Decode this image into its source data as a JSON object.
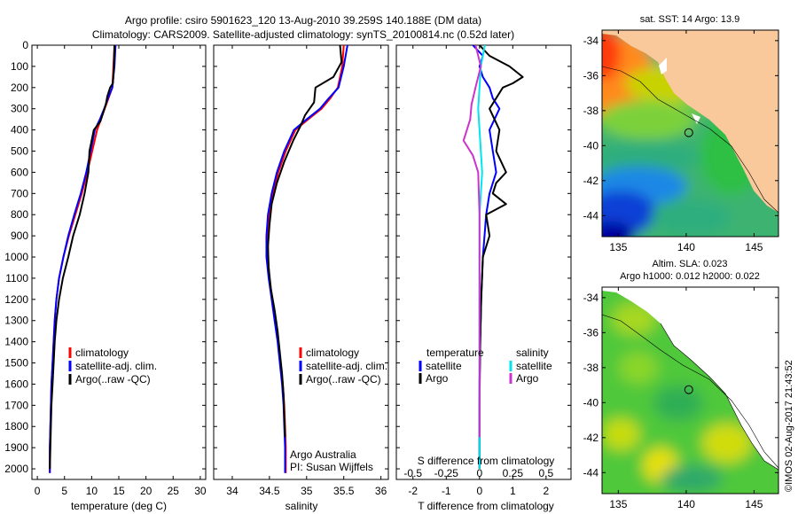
{
  "header": {
    "title_line1": "Argo profile: csiro 5901623_120 13-Aug-2010 39.259S 140.188E (DM data)",
    "title_line2": "Climatology: CARS2009. Satellite-adjusted climatology: synTS_20100814.nc (0.52d later)"
  },
  "colors": {
    "climatology": "#ff0000",
    "satellite": "#0000ff",
    "argo": "#000000",
    "salinity_satellite": "#00e5ee",
    "salinity_argo": "#cc33cc",
    "land": "#f9c89b"
  },
  "chart_data": [
    {
      "id": "temperature",
      "type": "line",
      "xlabel": "temperature (deg C)",
      "xlim": [
        -1,
        31
      ],
      "xticks": [
        0,
        5,
        10,
        15,
        20,
        25,
        30
      ],
      "ylim": [
        0,
        2050
      ],
      "yticks": [
        0,
        100,
        200,
        300,
        400,
        500,
        600,
        700,
        800,
        900,
        1000,
        1100,
        1200,
        1300,
        1400,
        1500,
        1600,
        1700,
        1800,
        1900,
        2000
      ],
      "legend": [
        "climatology",
        "satellite-adj. clim.",
        "Argo(..raw -QC)"
      ],
      "series": [
        {
          "name": "climatology",
          "color": "#ff0000",
          "x": [
            14.2,
            14.0,
            13.8,
            13.1,
            12.4,
            11.7,
            11.0,
            10.1,
            9.2,
            8.2,
            7.0,
            5.8,
            4.8,
            4.0,
            3.5,
            3.2,
            3.0,
            2.8,
            2.6,
            2.5,
            2.4,
            2.3,
            2.3
          ],
          "y": [
            0,
            100,
            200,
            250,
            300,
            350,
            400,
            500,
            600,
            700,
            800,
            900,
            1000,
            1100,
            1200,
            1300,
            1400,
            1500,
            1600,
            1700,
            1800,
            1900,
            2020
          ]
        },
        {
          "name": "satellite-adj. clim.",
          "color": "#0000ff",
          "x": [
            14.4,
            14.2,
            13.8,
            13.0,
            12.3,
            11.5,
            10.6,
            9.8,
            9.0,
            8.0,
            6.8,
            5.7,
            4.8,
            4.0,
            3.5,
            3.2,
            3.0,
            2.8,
            2.6,
            2.5,
            2.4,
            2.3,
            2.3
          ],
          "y": [
            0,
            100,
            200,
            250,
            300,
            350,
            400,
            500,
            600,
            700,
            800,
            900,
            1000,
            1100,
            1200,
            1300,
            1400,
            1500,
            1600,
            1700,
            1800,
            1900,
            2020
          ]
        },
        {
          "name": "Argo(..raw -QC)",
          "color": "#000000",
          "x": [
            14.2,
            14.1,
            13.9,
            13.4,
            12.9,
            12.6,
            11.6,
            10.4,
            9.6,
            9.4,
            8.7,
            7.8,
            6.6,
            5.7,
            4.7,
            4.0,
            3.5,
            3.2,
            3.0,
            2.8,
            2.6,
            2.5,
            2.4,
            2.3
          ],
          "y": [
            0,
            100,
            180,
            200,
            240,
            280,
            360,
            400,
            500,
            600,
            700,
            800,
            900,
            1000,
            1100,
            1200,
            1300,
            1400,
            1500,
            1600,
            1700,
            1800,
            1900,
            2000
          ]
        }
      ]
    },
    {
      "id": "salinity",
      "type": "line",
      "xlabel": "salinity",
      "xlim": [
        33.75,
        36.1
      ],
      "xticks": [
        34,
        34.5,
        35,
        35.5,
        36
      ],
      "ylim": [
        0,
        2050
      ],
      "legend": [
        "climatology",
        "satellite-adj. clim.",
        "Argo(..raw -QC)"
      ],
      "annotation": [
        "Argo Australia",
        "PI: Susan Wijffels"
      ],
      "series": [
        {
          "name": "climatology",
          "color": "#ff0000",
          "x": [
            35.5,
            35.48,
            35.42,
            35.32,
            35.2,
            35.02,
            34.85,
            34.72,
            34.62,
            34.55,
            34.5,
            34.48,
            34.48,
            34.5,
            34.54,
            34.58,
            34.62,
            34.65,
            34.68,
            34.7,
            34.71,
            34.72,
            34.72
          ],
          "y": [
            0,
            100,
            200,
            250,
            300,
            350,
            400,
            500,
            600,
            700,
            800,
            900,
            1000,
            1100,
            1200,
            1300,
            1400,
            1500,
            1600,
            1700,
            1800,
            1900,
            2020
          ]
        },
        {
          "name": "satellite-adj. clim.",
          "color": "#0000ff",
          "x": [
            35.55,
            35.5,
            35.43,
            35.3,
            35.18,
            35.0,
            34.83,
            34.7,
            34.6,
            34.53,
            34.48,
            34.46,
            34.46,
            34.49,
            34.53,
            34.57,
            34.61,
            34.64,
            34.67,
            34.69,
            34.7,
            34.71,
            34.71
          ],
          "y": [
            0,
            100,
            200,
            250,
            300,
            350,
            400,
            500,
            600,
            700,
            800,
            900,
            1000,
            1100,
            1200,
            1300,
            1400,
            1500,
            1600,
            1700,
            1800,
            1900,
            2020
          ]
        },
        {
          "name": "Argo(..raw -QC)",
          "color": "#000000",
          "x": [
            35.45,
            35.47,
            35.36,
            35.12,
            35.1,
            34.98,
            34.92,
            34.82,
            34.7,
            34.6,
            34.53,
            34.5,
            34.48,
            34.49,
            34.52,
            34.57,
            34.61,
            34.64,
            34.67,
            34.69,
            34.7,
            34.71
          ],
          "y": [
            0,
            80,
            150,
            200,
            270,
            330,
            380,
            450,
            550,
            650,
            750,
            850,
            950,
            1050,
            1150,
            1250,
            1350,
            1450,
            1550,
            1650,
            1750,
            1850
          ]
        }
      ]
    },
    {
      "id": "difference",
      "type": "line",
      "xlabel": "T difference from climatology",
      "xlabel_top": "S difference from climatology",
      "xlim": [
        -2.5,
        2.75
      ],
      "xticks": [
        -2,
        -1,
        0,
        1,
        2
      ],
      "xticks_top": [
        -0.5,
        -0.25,
        0,
        0.25,
        0.5
      ],
      "ylim": [
        0,
        2050
      ],
      "legend_headers": [
        "temperature",
        "salinity"
      ],
      "legend": [
        "satellite",
        "Argo",
        "satellite",
        "Argo"
      ],
      "series": [
        {
          "name": "temperature satellite",
          "color": "#0000ff",
          "x": [
            -0.2,
            0.1,
            0.0,
            0.1,
            0.3,
            0.4,
            0.6,
            0.3,
            0.4,
            0.5,
            0.3,
            0.2,
            0.1,
            0.05,
            0.02,
            0.01,
            0.0,
            0.0,
            0.0,
            0.0,
            0.0
          ],
          "y": [
            0,
            50,
            100,
            150,
            200,
            250,
            300,
            400,
            500,
            600,
            700,
            800,
            1000,
            1200,
            1400,
            1500,
            1600,
            1700,
            1800,
            1900,
            2000
          ]
        },
        {
          "name": "temperature Argo",
          "color": "#000000",
          "x": [
            0.0,
            0.3,
            0.9,
            1.3,
            1.0,
            0.7,
            0.5,
            0.3,
            0.6,
            0.5,
            0.8,
            0.5,
            0.4,
            0.8,
            0.2,
            0.3,
            0.1,
            0.05,
            0.02,
            0.0,
            0.0
          ],
          "y": [
            0,
            50,
            100,
            150,
            180,
            200,
            250,
            300,
            400,
            500,
            600,
            650,
            700,
            750,
            800,
            900,
            1000,
            1200,
            1400,
            1700,
            2000
          ]
        },
        {
          "name": "salinity satellite",
          "color": "#00e5ee",
          "x": [
            0.04,
            0.01,
            0.0,
            -0.01,
            0.0,
            0.01,
            0.02,
            0.01,
            0.0,
            0.0,
            0.0,
            0.0,
            0.0
          ],
          "y": [
            0,
            100,
            200,
            300,
            400,
            500,
            600,
            700,
            800,
            1000,
            1400,
            1800,
            2000
          ]
        },
        {
          "name": "salinity Argo",
          "color": "#cc33cc",
          "x": [
            -0.03,
            0.01,
            -0.03,
            -0.06,
            -0.07,
            -0.12,
            -0.05,
            -0.01,
            0.0,
            0.0,
            0.0,
            0.0
          ],
          "y": [
            0,
            100,
            200,
            280,
            350,
            450,
            520,
            600,
            800,
            1000,
            1500,
            1850
          ]
        }
      ]
    },
    {
      "id": "sst-map",
      "type": "heatmap",
      "title": "sat. SST: 14  Argo: 13.9",
      "xlim": [
        133.8,
        146.8
      ],
      "ylim": [
        -45.2,
        -33.4
      ],
      "xticks": [
        135,
        140,
        145
      ],
      "yticks": [
        -34,
        -36,
        -38,
        -40,
        -42,
        -44
      ],
      "marker": {
        "lon": 140.188,
        "lat": -39.259
      }
    },
    {
      "id": "sla-map",
      "type": "heatmap",
      "title": "Altim. SLA: 0.023",
      "subtitle": "Argo h1000: 0.012 h2000: 0.022",
      "xlim": [
        133.8,
        146.8
      ],
      "ylim": [
        -45.2,
        -33.4
      ],
      "xticks": [
        135,
        140,
        145
      ],
      "yticks": [
        -34,
        -36,
        -38,
        -40,
        -42,
        -44
      ],
      "marker": {
        "lon": 140.188,
        "lat": -39.259
      }
    }
  ],
  "footer": {
    "stamp": "©IMOS 02-Aug-2017 21:43:52"
  }
}
